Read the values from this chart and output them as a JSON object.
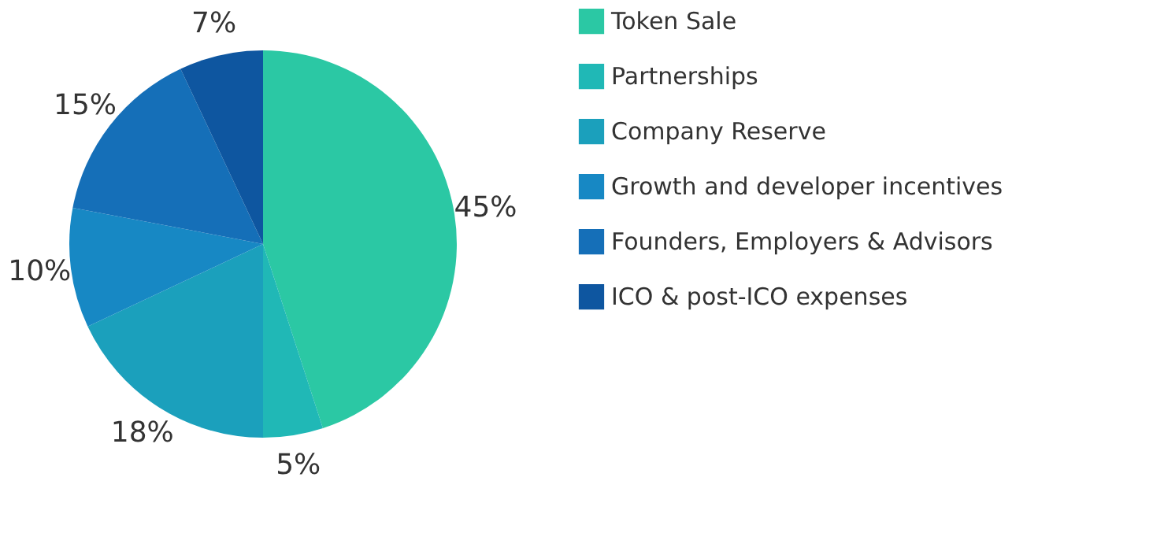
{
  "chart_data": {
    "type": "pie",
    "categories": [
      "Token Sale",
      "Partnerships",
      "Company Reserve",
      "Growth and developer incentives",
      "Founders, Employers & Advisors",
      "ICO & post-ICO expenses"
    ],
    "values": [
      45,
      5,
      18,
      10,
      15,
      7
    ],
    "value_labels": [
      "45%",
      "5%",
      "18%",
      "10%",
      "15%",
      "7%"
    ],
    "colors": [
      "#2bc8a4",
      "#20b8b6",
      "#1ba0bc",
      "#1788c4",
      "#156fb8",
      "#0e56a0"
    ],
    "legend": "right"
  }
}
